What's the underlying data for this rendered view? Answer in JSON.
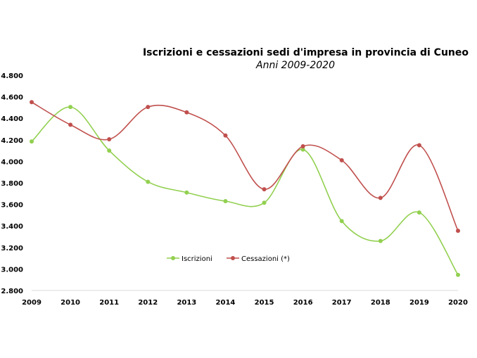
{
  "chart_data": {
    "type": "line",
    "title": "Iscrizioni e cessazioni sedi d'impresa in provincia di Cuneo",
    "subtitle": "Anni 2009-2020",
    "xlabel": "",
    "ylabel": "",
    "categories": [
      "2009",
      "2010",
      "2011",
      "2012",
      "2013",
      "2014",
      "2015",
      "2016",
      "2017",
      "2018",
      "2019",
      "2020"
    ],
    "ylim": [
      2800,
      4800
    ],
    "yticks": [
      {
        "value": 2800,
        "label": "2.800"
      },
      {
        "value": 3000,
        "label": "3.000"
      },
      {
        "value": 3200,
        "label": "3.200"
      },
      {
        "value": 3400,
        "label": "3.400"
      },
      {
        "value": 3600,
        "label": "3.600"
      },
      {
        "value": 3800,
        "label": "3.800"
      },
      {
        "value": 4000,
        "label": "4.000"
      },
      {
        "value": 4200,
        "label": "4.200"
      },
      {
        "value": 4400,
        "label": "4.400"
      },
      {
        "value": 4600,
        "label": "4.600"
      },
      {
        "value": 4800,
        "label": "4.800"
      }
    ],
    "grid": false,
    "legend_position": "bottom-center",
    "series": [
      {
        "name": "Iscrizioni",
        "color": "#92d050",
        "values": [
          4185,
          4505,
          4100,
          3810,
          3710,
          3630,
          3615,
          4110,
          3445,
          3260,
          3525,
          2945
        ]
      },
      {
        "name": "Cessazioni (*)",
        "color": "#c0504d",
        "values": [
          4550,
          4340,
          4205,
          4505,
          4455,
          4240,
          3740,
          4140,
          4010,
          3660,
          4150,
          3355
        ]
      }
    ]
  }
}
